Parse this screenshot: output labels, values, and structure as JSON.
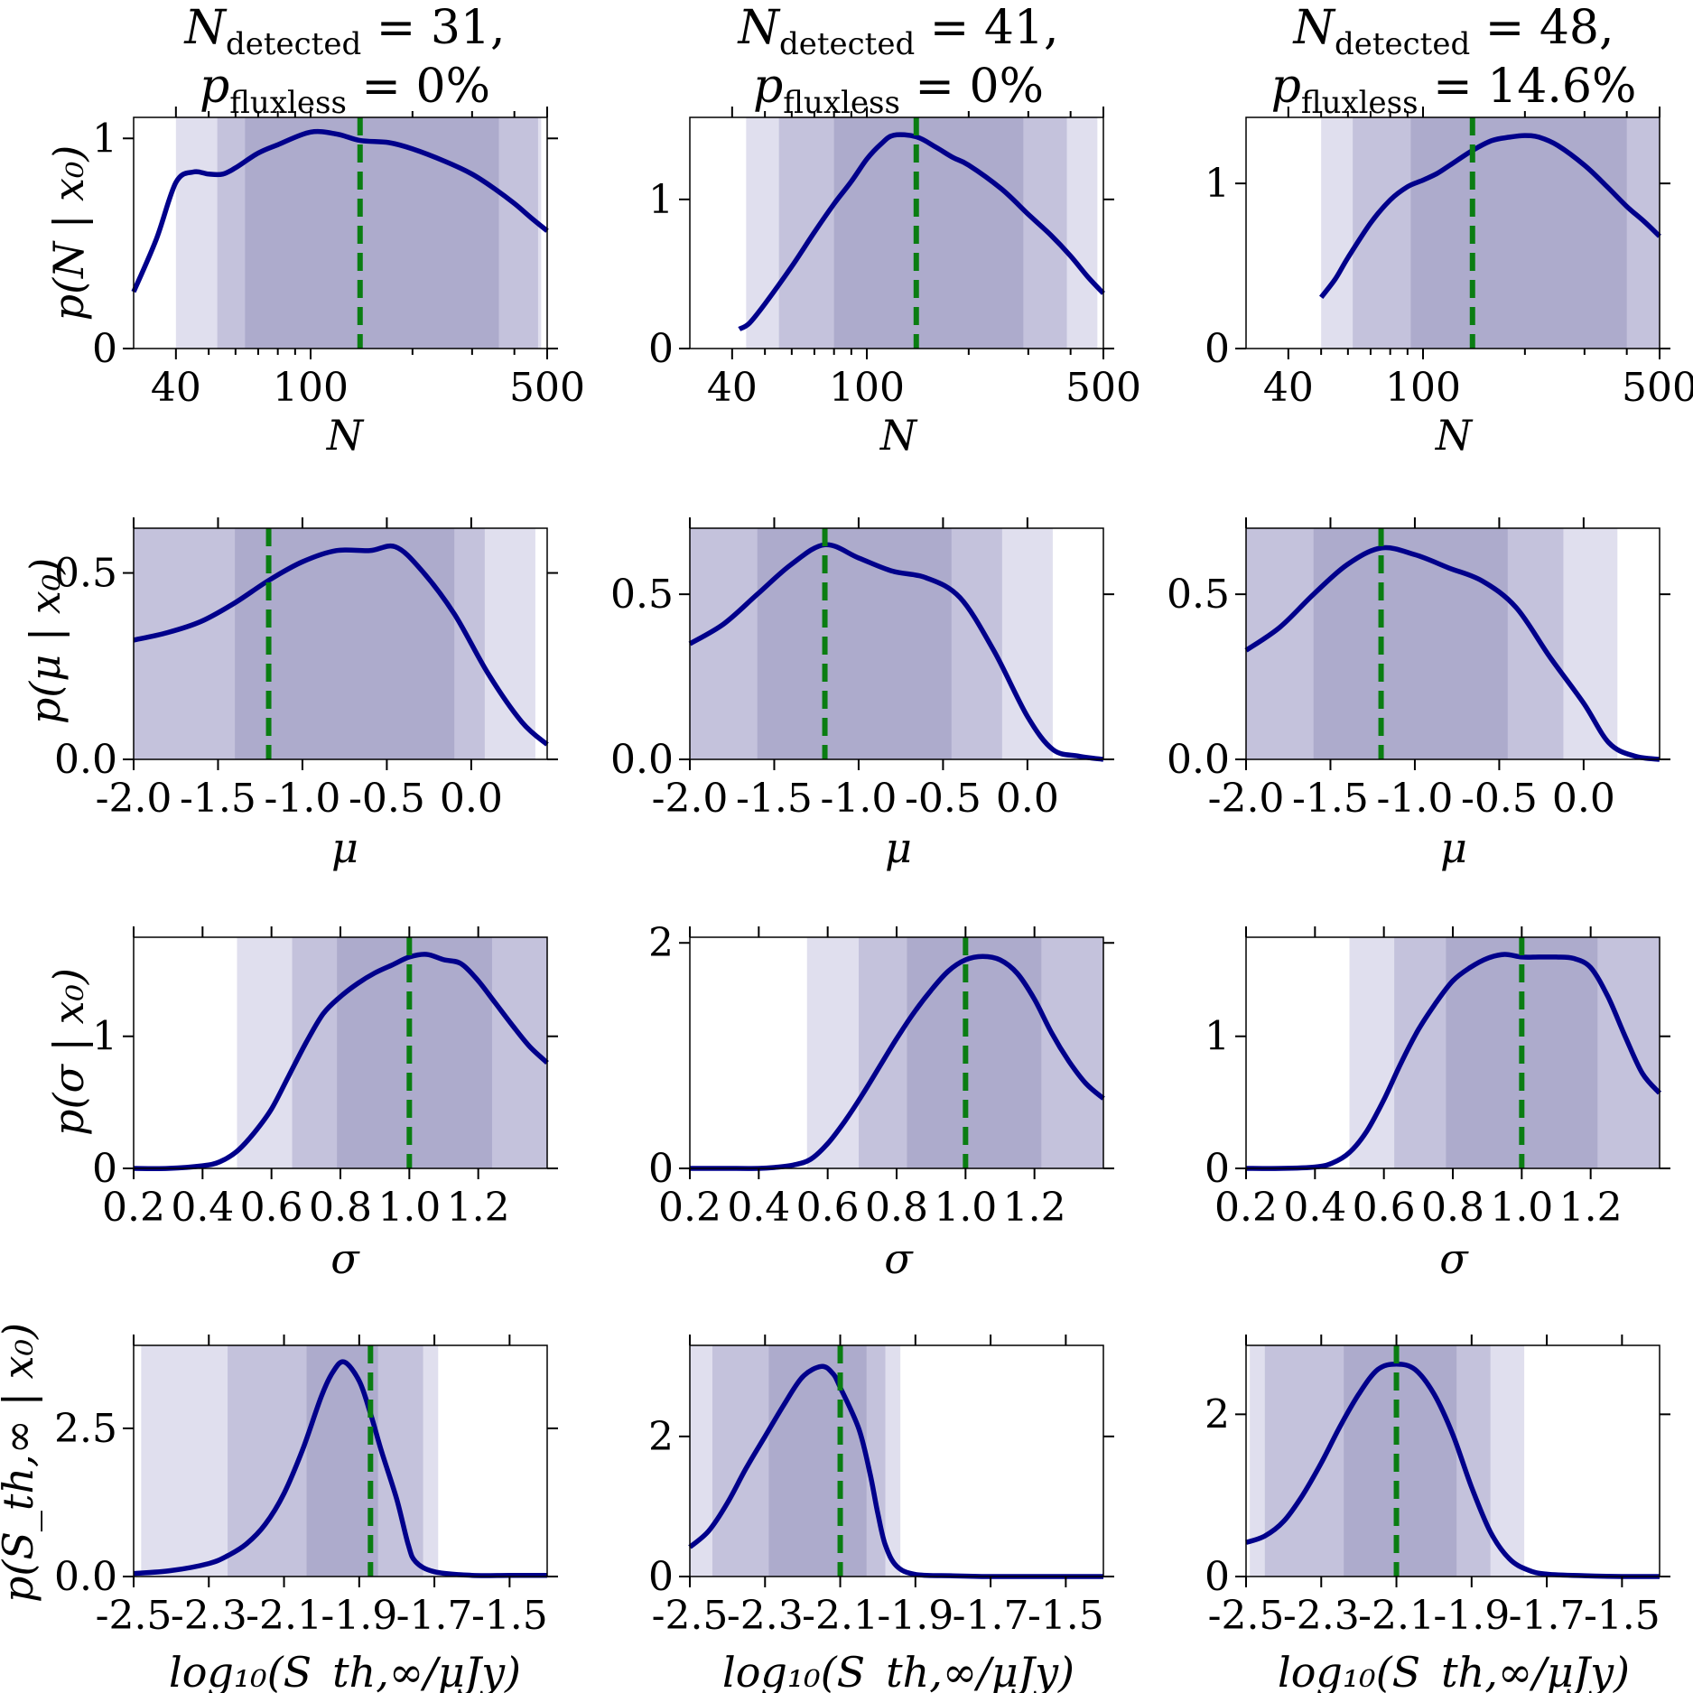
{
  "colors": {
    "band_outer": "#e0dfee",
    "band_mid": "#c4c2dc",
    "band_inner": "#adabcc",
    "curve": "#00008b",
    "truth": "#0a7d12"
  },
  "columns": [
    {
      "title": {
        "n_sym": "N",
        "n_sub": "detected",
        "n_rest": " = 31,",
        "p_sym": "p",
        "p_sub": "fluxless",
        "p_rest": " = 0%"
      }
    },
    {
      "title": {
        "n_sym": "N",
        "n_sub": "detected",
        "n_rest": " = 41,",
        "p_sym": "p",
        "p_sub": "fluxless",
        "p_rest": " = 0%"
      }
    },
    {
      "title": {
        "n_sym": "N",
        "n_sub": "detected",
        "n_rest": " = 48,",
        "p_sym": "p",
        "p_sub": "fluxless",
        "p_rest": " = 14.6%"
      }
    }
  ],
  "rows": [
    {
      "xlabel": "N",
      "ylabel": "p(N | x₀)",
      "xscale": "log"
    },
    {
      "xlabel": "μ",
      "ylabel": "p(μ | x₀)",
      "xscale": "linear"
    },
    {
      "xlabel": "σ",
      "ylabel": "p(σ | x₀)",
      "xscale": "linear"
    },
    {
      "xlabel": "log₁₀(S_th,∞/μJy)",
      "ylabel": "p(S_th,∞ | x₀)",
      "xscale": "linear"
    }
  ],
  "chart_data": [
    {
      "type": "line",
      "row": 0,
      "col": 0,
      "xlim": [
        30,
        500
      ],
      "ylim": [
        0,
        1.1
      ],
      "xticks": [
        40,
        100,
        500
      ],
      "xtick_labels": [
        "40",
        "100",
        "500"
      ],
      "yticks": [
        0,
        1
      ],
      "ytick_labels": [
        "0",
        "1"
      ],
      "x": [
        30,
        35,
        40,
        45,
        50,
        55,
        60,
        70,
        80,
        100,
        120,
        140,
        170,
        200,
        250,
        300,
        350,
        400,
        450,
        500
      ],
      "y": [
        0.27,
        0.52,
        0.79,
        0.84,
        0.83,
        0.83,
        0.86,
        0.93,
        0.97,
        1.03,
        1.02,
        0.99,
        0.98,
        0.95,
        0.89,
        0.83,
        0.76,
        0.69,
        0.62,
        0.56
      ],
      "bands": [
        [
          40,
          480
        ],
        [
          53,
          470
        ],
        [
          64,
          360
        ]
      ],
      "truth": 140
    },
    {
      "type": "line",
      "row": 0,
      "col": 1,
      "xlim": [
        30,
        500
      ],
      "ylim": [
        0,
        1.55
      ],
      "xticks": [
        40,
        100,
        500
      ],
      "xtick_labels": [
        "40",
        "100",
        "500"
      ],
      "yticks": [
        0,
        1
      ],
      "ytick_labels": [
        "0",
        "1"
      ],
      "x": [
        42,
        45,
        50,
        60,
        70,
        80,
        90,
        100,
        110,
        120,
        140,
        160,
        180,
        200,
        250,
        300,
        350,
        400,
        450,
        500
      ],
      "y": [
        0.13,
        0.17,
        0.3,
        0.55,
        0.78,
        0.97,
        1.12,
        1.27,
        1.37,
        1.43,
        1.42,
        1.35,
        1.28,
        1.23,
        1.07,
        0.9,
        0.76,
        0.62,
        0.48,
        0.37
      ],
      "bands": [
        [
          44,
          480
        ],
        [
          55,
          390
        ],
        [
          80,
          290
        ]
      ],
      "truth": 140
    },
    {
      "type": "line",
      "row": 0,
      "col": 2,
      "xlim": [
        30,
        500
      ],
      "ylim": [
        0,
        1.4
      ],
      "xticks": [
        40,
        100,
        500
      ],
      "xtick_labels": [
        "40",
        "100",
        "500"
      ],
      "yticks": [
        0,
        1
      ],
      "ytick_labels": [
        "0",
        "1"
      ],
      "x": [
        50,
        55,
        60,
        70,
        80,
        90,
        100,
        110,
        120,
        140,
        160,
        180,
        200,
        220,
        250,
        300,
        350,
        400,
        450,
        500
      ],
      "y": [
        0.31,
        0.42,
        0.55,
        0.76,
        0.9,
        0.98,
        1.02,
        1.06,
        1.11,
        1.2,
        1.26,
        1.28,
        1.29,
        1.28,
        1.23,
        1.11,
        0.98,
        0.86,
        0.77,
        0.68
      ],
      "bands": [
        [
          50,
          500
        ],
        [
          62,
          500
        ],
        [
          92,
          400
        ]
      ],
      "truth": 140
    },
    {
      "type": "line",
      "row": 1,
      "col": 0,
      "xlim": [
        -2.0,
        0.45
      ],
      "ylim": [
        0,
        0.62
      ],
      "xticks": [
        -2.0,
        -1.5,
        -1.0,
        -0.5,
        0.0
      ],
      "xtick_labels": [
        "-2.0",
        "-1.5",
        "-1.0",
        "-0.5",
        "0.0"
      ],
      "yticks": [
        0.0,
        0.5
      ],
      "ytick_labels": [
        "0.0",
        "0.5"
      ],
      "x": [
        -2.0,
        -1.8,
        -1.6,
        -1.4,
        -1.2,
        -1.0,
        -0.8,
        -0.6,
        -0.45,
        -0.3,
        -0.1,
        0.1,
        0.3,
        0.45
      ],
      "y": [
        0.32,
        0.34,
        0.37,
        0.42,
        0.48,
        0.53,
        0.56,
        0.56,
        0.57,
        0.51,
        0.39,
        0.23,
        0.1,
        0.04
      ],
      "bands": [
        [
          -2.0,
          0.38
        ],
        [
          -2.0,
          0.08
        ],
        [
          -1.4,
          -0.1
        ]
      ],
      "truth": -1.2
    },
    {
      "type": "line",
      "row": 1,
      "col": 1,
      "xlim": [
        -2.0,
        0.45
      ],
      "ylim": [
        0,
        0.7
      ],
      "xticks": [
        -2.0,
        -1.5,
        -1.0,
        -0.5,
        0.0
      ],
      "xtick_labels": [
        "-2.0",
        "-1.5",
        "-1.0",
        "-0.5",
        "0.0"
      ],
      "yticks": [
        0.0,
        0.5
      ],
      "ytick_labels": [
        "0.0",
        "0.5"
      ],
      "x": [
        -2.0,
        -1.8,
        -1.6,
        -1.4,
        -1.2,
        -1.0,
        -0.8,
        -0.6,
        -0.4,
        -0.2,
        0.0,
        0.15,
        0.3,
        0.45
      ],
      "y": [
        0.35,
        0.41,
        0.5,
        0.59,
        0.65,
        0.61,
        0.57,
        0.55,
        0.49,
        0.33,
        0.13,
        0.03,
        0.01,
        0.0
      ],
      "bands": [
        [
          -2.0,
          0.15
        ],
        [
          -2.0,
          -0.15
        ],
        [
          -1.6,
          -0.45
        ]
      ],
      "truth": -1.2
    },
    {
      "type": "line",
      "row": 1,
      "col": 2,
      "xlim": [
        -2.0,
        0.45
      ],
      "ylim": [
        0,
        0.7
      ],
      "xticks": [
        -2.0,
        -1.5,
        -1.0,
        -0.5,
        0.0
      ],
      "xtick_labels": [
        "-2.0",
        "-1.5",
        "-1.0",
        "-0.5",
        "0.0"
      ],
      "yticks": [
        0.0,
        0.5
      ],
      "ytick_labels": [
        "0.0",
        "0.5"
      ],
      "x": [
        -2.0,
        -1.8,
        -1.6,
        -1.4,
        -1.2,
        -1.0,
        -0.8,
        -0.6,
        -0.4,
        -0.2,
        0.0,
        0.15,
        0.3,
        0.45
      ],
      "y": [
        0.33,
        0.4,
        0.5,
        0.59,
        0.64,
        0.62,
        0.58,
        0.54,
        0.46,
        0.31,
        0.17,
        0.05,
        0.01,
        0.0
      ],
      "bands": [
        [
          -2.0,
          0.2
        ],
        [
          -2.0,
          -0.12
        ],
        [
          -1.6,
          -0.45
        ]
      ],
      "truth": -1.2
    },
    {
      "type": "line",
      "row": 2,
      "col": 0,
      "xlim": [
        0.2,
        1.4
      ],
      "ylim": [
        0,
        1.75
      ],
      "xticks": [
        0.2,
        0.4,
        0.6,
        0.8,
        1.0,
        1.2
      ],
      "xtick_labels": [
        "0.2",
        "0.4",
        "0.6",
        "0.8",
        "1.0",
        "1.2"
      ],
      "yticks": [
        0,
        1
      ],
      "ytick_labels": [
        "0",
        "1"
      ],
      "x": [
        0.2,
        0.3,
        0.4,
        0.45,
        0.5,
        0.55,
        0.6,
        0.65,
        0.7,
        0.75,
        0.8,
        0.85,
        0.9,
        0.95,
        1.0,
        1.05,
        1.1,
        1.15,
        1.2,
        1.25,
        1.3,
        1.35,
        1.4
      ],
      "y": [
        0.0,
        0.0,
        0.02,
        0.05,
        0.13,
        0.27,
        0.45,
        0.7,
        0.95,
        1.17,
        1.3,
        1.4,
        1.48,
        1.54,
        1.6,
        1.62,
        1.58,
        1.55,
        1.42,
        1.25,
        1.08,
        0.92,
        0.8
      ],
      "bands": [
        [
          0.5,
          1.4
        ],
        [
          0.66,
          1.4
        ],
        [
          0.79,
          1.24
        ]
      ],
      "truth": 1.0
    },
    {
      "type": "line",
      "row": 2,
      "col": 1,
      "xlim": [
        0.2,
        1.4
      ],
      "ylim": [
        0,
        2.05
      ],
      "xticks": [
        0.2,
        0.4,
        0.6,
        0.8,
        1.0,
        1.2
      ],
      "xtick_labels": [
        "0.2",
        "0.4",
        "0.6",
        "0.8",
        "1.0",
        "1.2"
      ],
      "yticks": [
        0,
        2
      ],
      "ytick_labels": [
        "0",
        "2"
      ],
      "x": [
        0.2,
        0.3,
        0.4,
        0.45,
        0.5,
        0.55,
        0.6,
        0.65,
        0.7,
        0.75,
        0.8,
        0.85,
        0.9,
        0.95,
        1.0,
        1.05,
        1.1,
        1.15,
        1.2,
        1.25,
        1.3,
        1.35,
        1.4
      ],
      "y": [
        0.0,
        0.0,
        0.0,
        0.01,
        0.03,
        0.08,
        0.22,
        0.42,
        0.65,
        0.9,
        1.15,
        1.38,
        1.58,
        1.75,
        1.85,
        1.88,
        1.85,
        1.73,
        1.5,
        1.2,
        0.95,
        0.75,
        0.62
      ],
      "bands": [
        [
          0.54,
          1.4
        ],
        [
          0.69,
          1.4
        ],
        [
          0.83,
          1.22
        ]
      ],
      "truth": 1.0
    },
    {
      "type": "line",
      "row": 2,
      "col": 2,
      "xlim": [
        0.2,
        1.4
      ],
      "ylim": [
        0,
        1.75
      ],
      "xticks": [
        0.2,
        0.4,
        0.6,
        0.8,
        1.0,
        1.2
      ],
      "xtick_labels": [
        "0.2",
        "0.4",
        "0.6",
        "0.8",
        "1.0",
        "1.2"
      ],
      "yticks": [
        0,
        1
      ],
      "ytick_labels": [
        "0",
        "1"
      ],
      "x": [
        0.2,
        0.3,
        0.4,
        0.45,
        0.5,
        0.55,
        0.6,
        0.65,
        0.7,
        0.75,
        0.8,
        0.85,
        0.9,
        0.95,
        1.0,
        1.05,
        1.1,
        1.15,
        1.2,
        1.25,
        1.3,
        1.35,
        1.4
      ],
      "y": [
        0.0,
        0.0,
        0.01,
        0.04,
        0.12,
        0.28,
        0.52,
        0.8,
        1.05,
        1.25,
        1.42,
        1.52,
        1.59,
        1.62,
        1.6,
        1.6,
        1.6,
        1.59,
        1.52,
        1.3,
        1.0,
        0.72,
        0.57
      ],
      "bands": [
        [
          0.5,
          1.4
        ],
        [
          0.63,
          1.4
        ],
        [
          0.78,
          1.22
        ]
      ],
      "truth": 1.0
    },
    {
      "type": "line",
      "row": 3,
      "col": 0,
      "xlim": [
        -2.5,
        -1.4
      ],
      "ylim": [
        0,
        3.9
      ],
      "xticks": [
        -2.5,
        -2.3,
        -2.1,
        -1.9,
        -1.7,
        -1.5
      ],
      "xtick_labels": [
        "-2.5",
        "-2.3",
        "-2.1",
        "-1.9",
        "-1.7",
        "-1.5"
      ],
      "yticks": [
        0.0,
        2.5
      ],
      "ytick_labels": [
        "0.0",
        "2.5"
      ],
      "x": [
        -2.5,
        -2.4,
        -2.3,
        -2.25,
        -2.2,
        -2.15,
        -2.1,
        -2.05,
        -2.0,
        -1.97,
        -1.94,
        -1.9,
        -1.87,
        -1.84,
        -1.8,
        -1.77,
        -1.75,
        -1.7,
        -1.6,
        -1.5,
        -1.4
      ],
      "y": [
        0.05,
        0.1,
        0.22,
        0.35,
        0.55,
        0.88,
        1.4,
        2.15,
        3.05,
        3.45,
        3.62,
        3.3,
        2.75,
        2.1,
        1.3,
        0.55,
        0.25,
        0.08,
        0.02,
        0.02,
        0.02
      ],
      "bands": [
        [
          -2.48,
          -1.69
        ],
        [
          -2.25,
          -1.73
        ],
        [
          -2.04,
          -1.85
        ]
      ],
      "truth": -1.87
    },
    {
      "type": "line",
      "row": 3,
      "col": 1,
      "xlim": [
        -2.5,
        -1.4
      ],
      "ylim": [
        0,
        3.3
      ],
      "xticks": [
        -2.5,
        -2.3,
        -2.1,
        -1.9,
        -1.7,
        -1.5
      ],
      "xtick_labels": [
        "-2.5",
        "-2.3",
        "-2.1",
        "-1.9",
        "-1.7",
        "-1.5"
      ],
      "yticks": [
        0,
        2
      ],
      "ytick_labels": [
        "0",
        "2"
      ],
      "x": [
        -2.5,
        -2.45,
        -2.4,
        -2.35,
        -2.3,
        -2.25,
        -2.2,
        -2.15,
        -2.12,
        -2.1,
        -2.05,
        -2.02,
        -2.0,
        -1.98,
        -1.95,
        -1.9,
        -1.8,
        -1.7,
        -1.6,
        -1.5,
        -1.4
      ],
      "y": [
        0.42,
        0.65,
        1.05,
        1.55,
        2.0,
        2.45,
        2.85,
        3.0,
        2.9,
        2.7,
        2.1,
        1.45,
        0.9,
        0.45,
        0.15,
        0.03,
        0.01,
        0.0,
        0.0,
        0.0,
        0.0
      ],
      "bands": [
        [
          -2.5,
          -1.94
        ],
        [
          -2.44,
          -1.98
        ],
        [
          -2.29,
          -2.03
        ]
      ],
      "truth": -2.1
    },
    {
      "type": "line",
      "row": 3,
      "col": 2,
      "xlim": [
        -2.5,
        -1.4
      ],
      "ylim": [
        0,
        2.85
      ],
      "xticks": [
        -2.5,
        -2.3,
        -2.1,
        -1.9,
        -1.7,
        -1.5
      ],
      "xtick_labels": [
        "-2.5",
        "-2.3",
        "-2.1",
        "-1.9",
        "-1.7",
        "-1.5"
      ],
      "yticks": [
        0,
        2
      ],
      "ytick_labels": [
        "0",
        "2"
      ],
      "x": [
        -2.5,
        -2.45,
        -2.4,
        -2.35,
        -2.3,
        -2.25,
        -2.2,
        -2.15,
        -2.1,
        -2.05,
        -2.0,
        -1.95,
        -1.9,
        -1.85,
        -1.8,
        -1.75,
        -1.7,
        -1.6,
        -1.5,
        -1.4
      ],
      "y": [
        0.42,
        0.5,
        0.68,
        1.0,
        1.4,
        1.85,
        2.25,
        2.55,
        2.62,
        2.55,
        2.25,
        1.75,
        1.1,
        0.55,
        0.22,
        0.08,
        0.03,
        0.01,
        0.0,
        0.0
      ],
      "bands": [
        [
          -2.49,
          -1.76
        ],
        [
          -2.45,
          -1.85
        ],
        [
          -2.24,
          -1.94
        ]
      ],
      "truth": -2.1
    }
  ]
}
